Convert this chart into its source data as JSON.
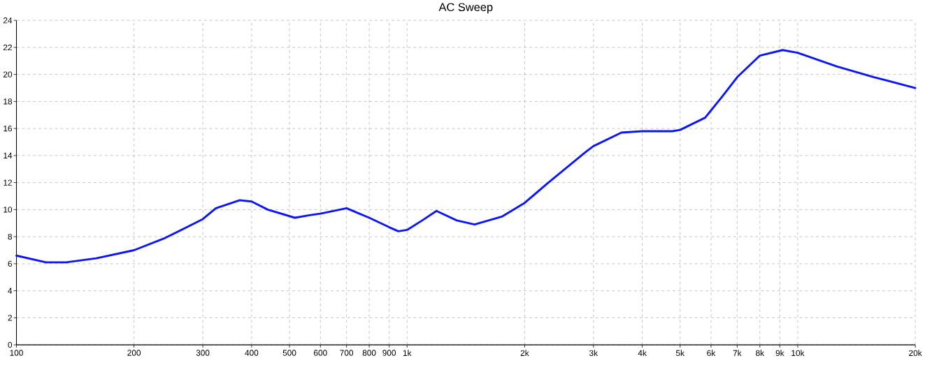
{
  "chart_data": {
    "type": "line",
    "title": "AC Sweep",
    "log": "x",
    "grid": true,
    "line_style": "solid",
    "xlim": [
      100,
      20000
    ],
    "ylim": [
      0,
      24
    ],
    "xticks": [
      100,
      200,
      300,
      400,
      500,
      600,
      700,
      800,
      900,
      {
        "value": 1000,
        "label": "1k"
      },
      {
        "value": 2000,
        "label": "2k"
      },
      {
        "value": 3000,
        "label": "3k"
      },
      {
        "value": 4000,
        "label": "4k"
      },
      {
        "value": 5000,
        "label": "5k"
      },
      {
        "value": 6000,
        "label": "6k"
      },
      {
        "value": 7000,
        "label": "7k"
      },
      {
        "value": 8000,
        "label": "8k"
      },
      {
        "value": 9000,
        "label": "9k"
      },
      {
        "value": 10000,
        "label": "10k"
      },
      {
        "value": 20000,
        "label": "20k"
      }
    ],
    "yticks": [
      0,
      2,
      4,
      6,
      8,
      10,
      12,
      14,
      16,
      18,
      20,
      22,
      24
    ],
    "series": [
      {
        "color": "#0a14ff",
        "x": [
          100,
          119,
          134,
          160,
          200,
          240,
          300,
          324,
          373,
          400,
          440,
          516,
          566,
          600,
          700,
          800,
          900,
          950,
          1000,
          1093,
          1189,
          1341,
          1489,
          1754,
          2000,
          2278,
          2875,
          3000,
          3537,
          4000,
          4775,
          5000,
          5795,
          6424,
          7000,
          8006,
          9148,
          10000,
          12580,
          15680,
          20000
        ],
        "values": [
          6.6,
          6.1,
          6.1,
          6.4,
          7.0,
          7.9,
          9.3,
          10.1,
          10.7,
          10.6,
          10.0,
          9.4,
          9.6,
          9.7,
          10.1,
          9.4,
          8.7,
          8.4,
          8.5,
          9.2,
          9.9,
          9.2,
          8.9,
          9.5,
          10.5,
          11.9,
          14.3,
          14.7,
          15.7,
          15.8,
          15.8,
          15.9,
          16.8,
          18.4,
          19.8,
          21.4,
          21.8,
          21.6,
          20.6,
          19.8,
          19.0
        ]
      }
    ]
  }
}
